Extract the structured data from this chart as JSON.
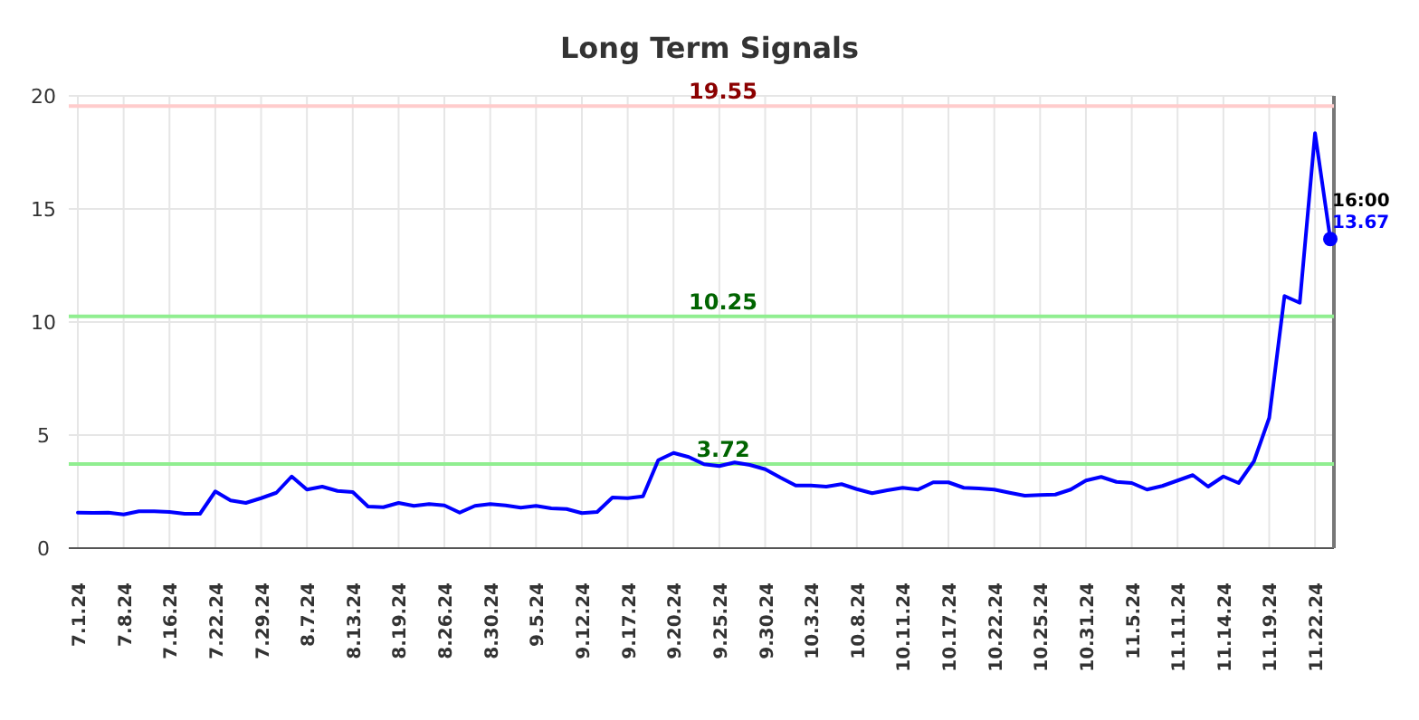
{
  "chart_data": {
    "type": "line",
    "title": "Long Term Signals",
    "categories": [
      "7.1.24",
      null,
      null,
      "7.8.24",
      null,
      null,
      "7.16.24",
      null,
      null,
      "7.22.24",
      null,
      null,
      "7.29.24",
      null,
      null,
      "8.7.24",
      null,
      null,
      "8.13.24",
      null,
      null,
      "8.19.24",
      null,
      null,
      "8.26.24",
      null,
      null,
      "8.30.24",
      null,
      null,
      "9.5.24",
      null,
      null,
      "9.12.24",
      null,
      null,
      "9.17.24",
      null,
      null,
      "9.20.24",
      null,
      null,
      "9.25.24",
      null,
      null,
      "9.30.24",
      null,
      null,
      "10.3.24",
      null,
      null,
      "10.8.24",
      null,
      null,
      "10.11.24",
      null,
      null,
      "10.17.24",
      null,
      null,
      "10.22.24",
      null,
      null,
      "10.25.24",
      null,
      null,
      "10.31.24",
      null,
      null,
      "11.5.24",
      null,
      null,
      "11.11.24",
      null,
      null,
      "11.14.24",
      null,
      null,
      "11.19.24",
      null,
      null,
      "11.22.24",
      null
    ],
    "series": [
      {
        "color": "#0000ff",
        "values": [
          1.57,
          1.56,
          1.57,
          1.49,
          1.63,
          1.63,
          1.6,
          1.52,
          1.52,
          2.51,
          2.11,
          2.0,
          2.21,
          2.45,
          3.17,
          2.59,
          2.72,
          2.53,
          2.48,
          1.84,
          1.81,
          2.0,
          1.87,
          1.95,
          1.89,
          1.57,
          1.87,
          1.95,
          1.89,
          1.79,
          1.87,
          1.76,
          1.73,
          1.55,
          1.6,
          2.24,
          2.21,
          2.29,
          3.89,
          4.21,
          4.03,
          3.71,
          3.63,
          3.79,
          3.68,
          3.49,
          3.12,
          2.77,
          2.77,
          2.72,
          2.83,
          2.61,
          2.43,
          2.56,
          2.67,
          2.59,
          2.91,
          2.91,
          2.67,
          2.64,
          2.59,
          2.45,
          2.32,
          2.35,
          2.37,
          2.59,
          2.99,
          3.15,
          2.93,
          2.88,
          2.59,
          2.75,
          2.99,
          3.23,
          2.72,
          3.17,
          2.88,
          3.84,
          5.76,
          11.15,
          10.85,
          18.35,
          13.67
        ],
        "value_labels": [
          null,
          null,
          null,
          null,
          null,
          null,
          null,
          null,
          null,
          null,
          null,
          null,
          null,
          null,
          null,
          null,
          null,
          null,
          null,
          null,
          null,
          null,
          null,
          null,
          null,
          null,
          null,
          null,
          null,
          null,
          null,
          null,
          null,
          null,
          null,
          null,
          null,
          null,
          null,
          null,
          null,
          null,
          null,
          null,
          null,
          null,
          null,
          null,
          null,
          null,
          null,
          null,
          null,
          null,
          null,
          null,
          null,
          null,
          null,
          null,
          null,
          null,
          null,
          null,
          null,
          null,
          null,
          null,
          null,
          null,
          null,
          null,
          null,
          null,
          null,
          null,
          null,
          null,
          null,
          null,
          null,
          null,
          "13.67"
        ]
      }
    ],
    "ylim": [
      0,
      20
    ],
    "yticks": [
      0,
      5,
      10,
      15,
      20
    ],
    "grid": true,
    "ref_lines": [
      {
        "axis": "y",
        "value": 19.55,
        "label": "19.55",
        "color": "#ffcccc"
      },
      {
        "axis": "y",
        "value": 10.25,
        "label": "10.25",
        "color": "#90ee90"
      },
      {
        "axis": "y",
        "value": 3.72,
        "label": "3.72",
        "color": "#90ee90"
      }
    ],
    "annotations": [
      "16:00"
    ]
  }
}
